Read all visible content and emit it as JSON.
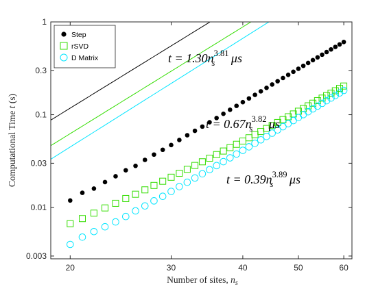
{
  "chart_data": {
    "type": "scatter",
    "title": "",
    "xlabel": "Number of sites, ",
    "xlabel_var": "n",
    "xlabel_sub": "s",
    "ylabel": "Computational Time ",
    "ylabel_var": "t",
    "ylabel_unit": " (s)",
    "xscale": "log",
    "yscale": "log",
    "xlim": [
      18.5,
      62
    ],
    "ylim": [
      0.0028,
      1.0
    ],
    "xticks": [
      20,
      30,
      40,
      50,
      60
    ],
    "xtick_labels": [
      "20",
      "30",
      "40",
      "50",
      "60"
    ],
    "yticks": [
      0.003,
      0.01,
      0.03,
      0.1,
      0.3,
      1
    ],
    "ytick_labels": [
      "0.003",
      "0.01",
      "0.03",
      "0.1",
      "0.3",
      "1"
    ],
    "grid": false,
    "legend_position": "top-left",
    "x": [
      20,
      21,
      22,
      23,
      24,
      25,
      26,
      27,
      28,
      29,
      30,
      31,
      32,
      33,
      34,
      35,
      36,
      37,
      38,
      39,
      40,
      41,
      42,
      43,
      44,
      45,
      46,
      47,
      48,
      49,
      50,
      51,
      52,
      53,
      54,
      55,
      56,
      57,
      58,
      59,
      60
    ],
    "series": [
      {
        "name": "Step",
        "marker": "filled-circle",
        "color": "#000000",
        "fit": {
          "a": 1.3,
          "b": 3.81,
          "unit_scale": 1e-06
        },
        "y": [
          0.0119,
          0.0144,
          0.016,
          0.0188,
          0.0217,
          0.0252,
          0.0281,
          0.0326,
          0.0372,
          0.0419,
          0.0471,
          0.0534,
          0.0601,
          0.0671,
          0.0745,
          0.0829,
          0.0921,
          0.1023,
          0.113,
          0.1245,
          0.1366,
          0.1498,
          0.1637,
          0.1787,
          0.1946,
          0.2117,
          0.2296,
          0.2487,
          0.2688,
          0.2902,
          0.3127,
          0.3364,
          0.3611,
          0.3873,
          0.4147,
          0.4434,
          0.4736,
          0.5049,
          0.5378,
          0.572,
          0.608
        ]
      },
      {
        "name": "rSVD",
        "marker": "open-square",
        "color": "#33dd00",
        "fit": {
          "a": 0.67,
          "b": 3.82,
          "unit_scale": 1e-06
        },
        "y": [
          0.0067,
          0.0076,
          0.0087,
          0.0099,
          0.0111,
          0.0125,
          0.0139,
          0.0155,
          0.0173,
          0.0192,
          0.0212,
          0.0234,
          0.0258,
          0.0284,
          0.0311,
          0.034,
          0.0372,
          0.0406,
          0.0442,
          0.048,
          0.0521,
          0.0564,
          0.061,
          0.0659,
          0.0711,
          0.0766,
          0.0824,
          0.0886,
          0.0951,
          0.1019,
          0.1091,
          0.1167,
          0.1247,
          0.133,
          0.1418,
          0.151,
          0.1606,
          0.1707,
          0.1812,
          0.1922,
          0.2037
        ]
      },
      {
        "name": "D Matrix",
        "marker": "open-circle",
        "color": "#00e5ff",
        "fit": {
          "a": 0.39,
          "b": 3.89,
          "unit_scale": 1e-06
        },
        "y": [
          0.004,
          0.0048,
          0.0055,
          0.0062,
          0.007,
          0.008,
          0.0092,
          0.0104,
          0.0118,
          0.0132,
          0.0149,
          0.0168,
          0.0187,
          0.0208,
          0.0231,
          0.0256,
          0.0283,
          0.0312,
          0.0343,
          0.0377,
          0.0413,
          0.0451,
          0.0492,
          0.0536,
          0.0583,
          0.0633,
          0.0686,
          0.0742,
          0.0802,
          0.0865,
          0.0932,
          0.1003,
          0.1077,
          0.1156,
          0.1238,
          0.1325,
          0.1416,
          0.1512,
          0.1612,
          0.1716,
          0.1826
        ]
      }
    ],
    "annotations": [
      {
        "lhs": "t = 1.30",
        "var": "n",
        "sub": "s",
        "sup": "3.81",
        "unit": " μs"
      },
      {
        "lhs": "t = 0.67",
        "var": "n",
        "sub": "s",
        "sup": "3.82",
        "unit": " μs"
      },
      {
        "lhs": "t = 0.39",
        "var": "n",
        "sub": "s",
        "sup": "3.89",
        "unit": " μs"
      }
    ]
  }
}
